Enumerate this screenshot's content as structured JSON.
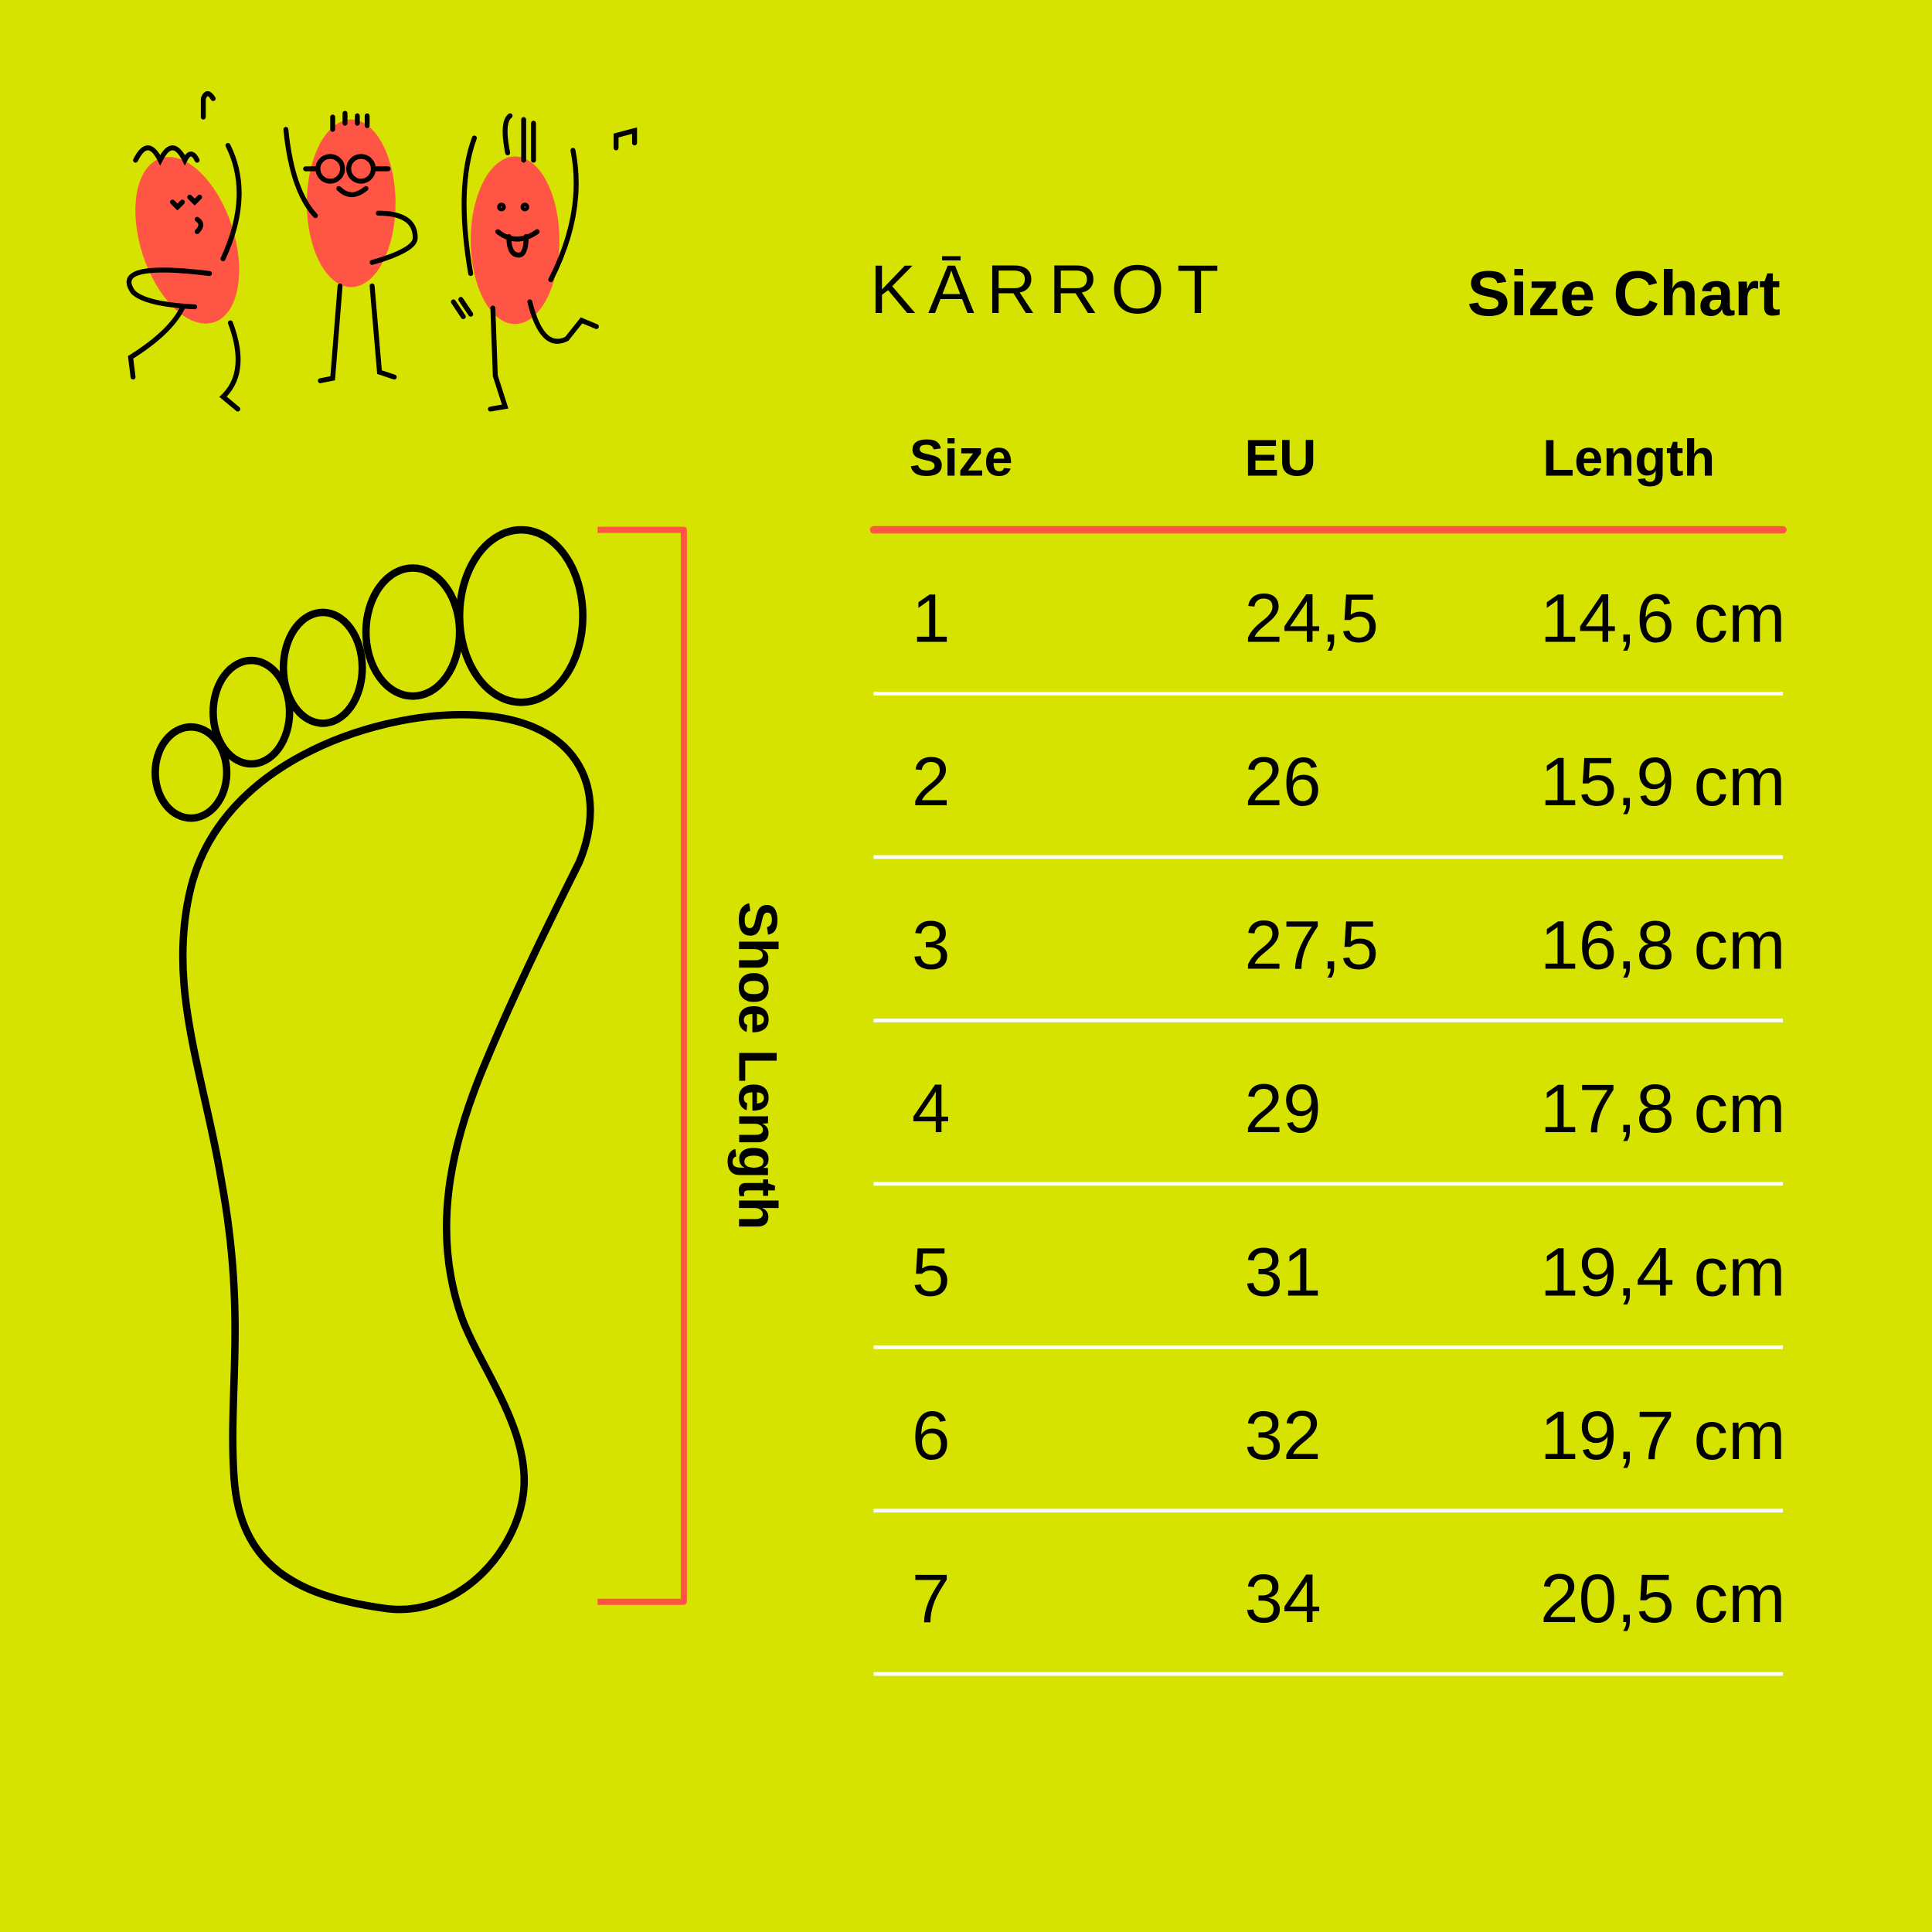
{
  "colors": {
    "background": "#d6e200",
    "accent": "#ff5544",
    "ink": "#000000",
    "divider": "#ffffff"
  },
  "brand": {
    "logo": "KĀRROT"
  },
  "title": "Size Chart",
  "diagram": {
    "measure_label": "Shoe Length"
  },
  "table": {
    "headers": [
      "Size",
      "EU",
      "Length"
    ],
    "rows": [
      [
        "1",
        "24,5",
        "14,6 cm"
      ],
      [
        "2",
        "26",
        "15,9 cm"
      ],
      [
        "3",
        "27,5",
        "16,8 cm"
      ],
      [
        "4",
        "29",
        "17,8 cm"
      ],
      [
        "5",
        "31",
        "19,4 cm"
      ],
      [
        "6",
        "32",
        "19,7 cm"
      ],
      [
        "7",
        "34",
        "20,5 cm"
      ]
    ]
  }
}
